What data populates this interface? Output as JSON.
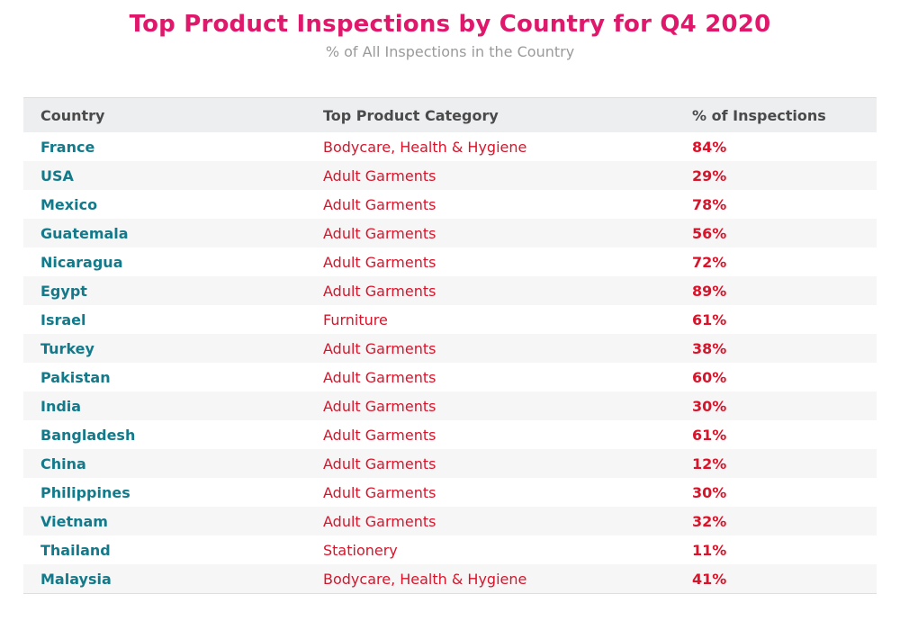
{
  "chart_data": {
    "type": "table",
    "title": "Top Product Inspections by Country for Q4 2020",
    "subtitle": "% of All Inspections in the Country",
    "columns": [
      "Country",
      "Top Product Category",
      "% of Inspections"
    ],
    "rows": [
      {
        "country": "France",
        "category": "Bodycare, Health & Hygiene",
        "pct": "84%"
      },
      {
        "country": "USA",
        "category": "Adult Garments",
        "pct": "29%"
      },
      {
        "country": "Mexico",
        "category": "Adult Garments",
        "pct": "78%"
      },
      {
        "country": "Guatemala",
        "category": "Adult Garments",
        "pct": "56%"
      },
      {
        "country": "Nicaragua",
        "category": "Adult Garments",
        "pct": "72%"
      },
      {
        "country": "Egypt",
        "category": "Adult Garments",
        "pct": "89%"
      },
      {
        "country": "Israel",
        "category": "Furniture",
        "pct": "61%"
      },
      {
        "country": "Turkey",
        "category": "Adult Garments",
        "pct": "38%"
      },
      {
        "country": "Pakistan",
        "category": "Adult Garments",
        "pct": "60%"
      },
      {
        "country": "India",
        "category": "Adult Garments",
        "pct": "30%"
      },
      {
        "country": "Bangladesh",
        "category": "Adult Garments",
        "pct": "61%"
      },
      {
        "country": "China",
        "category": "Adult Garments",
        "pct": "12%"
      },
      {
        "country": "Philippines",
        "category": "Adult Garments",
        "pct": "30%"
      },
      {
        "country": "Vietnam",
        "category": "Adult Garments",
        "pct": "32%"
      },
      {
        "country": "Thailand",
        "category": "Stationery",
        "pct": "11%"
      },
      {
        "country": "Malaysia",
        "category": "Bodycare, Health & Hygiene",
        "pct": "41%"
      }
    ]
  },
  "colors": {
    "title": "#e0186c",
    "subtitle": "#9a9a9a",
    "country": "#127a8a",
    "value": "#d9142a",
    "header_bg": "#eceef0",
    "stripe_bg": "#f6f6f7"
  }
}
